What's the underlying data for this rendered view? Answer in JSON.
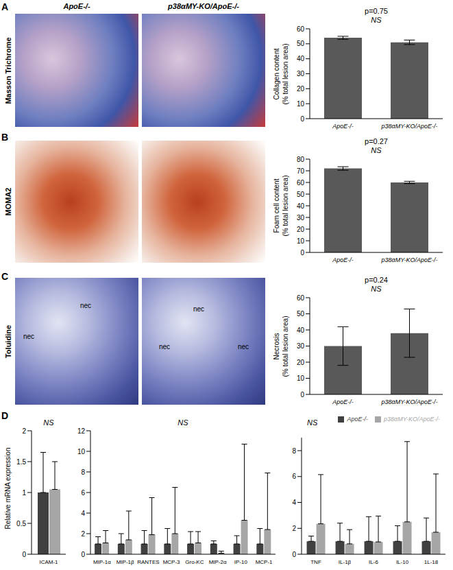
{
  "panels": [
    "A",
    "B",
    "C",
    "D"
  ],
  "image_columns": [
    "ApoE-/-",
    "p38αMY-KO/ApoE-/-"
  ],
  "image_rows": [
    {
      "label": "Masson Trichrome"
    },
    {
      "label": "MOMA2"
    },
    {
      "label": "Toluidine",
      "annotations": [
        [
          "nec",
          "nec"
        ],
        [
          "nec",
          "nec",
          "nec"
        ]
      ]
    }
  ],
  "chart_data": [
    {
      "type": "bar",
      "categories": [
        "ApoE-/-",
        "p38αMY-KO/ApoE-/-"
      ],
      "values": [
        54,
        51
      ],
      "errors": [
        1,
        1.5
      ],
      "color": "#595959",
      "ylabel": [
        "Collagen content",
        "(% total lesion area)"
      ],
      "ylim": [
        0,
        60
      ],
      "yticks": [
        0,
        10,
        20,
        30,
        40,
        50,
        60
      ],
      "annotations": [
        "p=0.75",
        "NS"
      ]
    },
    {
      "type": "bar",
      "categories": [
        "ApoE-/-",
        "p38αMY-KO/ApoE-/-"
      ],
      "values": [
        72,
        60
      ],
      "errors": [
        1.5,
        1
      ],
      "color": "#595959",
      "ylabel": [
        "Foam cell content",
        "(% total lesion area)"
      ],
      "ylim": [
        0,
        80
      ],
      "yticks": [
        0,
        10,
        20,
        30,
        40,
        50,
        60,
        70,
        80
      ],
      "annotations": [
        "p=0.27",
        "NS"
      ]
    },
    {
      "type": "bar",
      "categories": [
        "ApoE-/-",
        "p38αMY-KO/ApoE-/-"
      ],
      "values": [
        30,
        38
      ],
      "errors": [
        12,
        15
      ],
      "color": "#595959",
      "ylabel": [
        "Necrosis",
        "(% total lesion area)"
      ],
      "ylim": [
        0,
        60
      ],
      "yticks": [
        0,
        10,
        20,
        30,
        40,
        50,
        60
      ],
      "annotations": [
        "p=0.24",
        "NS"
      ]
    },
    {
      "type": "bar",
      "categories": [
        "ICAM-1"
      ],
      "series": [
        {
          "name": "ApoE-/-",
          "color": "#404040",
          "values": [
            1
          ],
          "errors": [
            0.65
          ]
        },
        {
          "name": "p38αMY-KO/ApoE-/-",
          "color": "#a6a6a6",
          "values": [
            1.05
          ],
          "errors": [
            0.45
          ]
        }
      ],
      "ylabel": "Relative mRNA expression",
      "ylim": [
        0,
        2
      ],
      "yticks": [
        0,
        0.5,
        1,
        1.5,
        2
      ],
      "annotations": [
        "NS"
      ]
    },
    {
      "type": "bar",
      "categories": [
        "MIP-1α",
        "MIP-1β",
        "RANTES",
        "MCP-3",
        "Gro-KC",
        "MIP-2α",
        "IP-10",
        "MCP-1"
      ],
      "series": [
        {
          "name": "ApoE-/-",
          "color": "#404040",
          "values": [
            1,
            1,
            1,
            1,
            1,
            1,
            1,
            1
          ],
          "errors": [
            0.7,
            1,
            1.3,
            1.5,
            1.2,
            0.3,
            0.8,
            1.5
          ]
        },
        {
          "name": "p38αMY-KO/ApoE-/-",
          "color": "#a6a6a6",
          "values": [
            1.1,
            1.4,
            1.9,
            2,
            1.1,
            0.1,
            3.3,
            2.4
          ],
          "errors": [
            1.2,
            2.8,
            3.6,
            4.5,
            1.1,
            0.2,
            7.4,
            5.5
          ]
        }
      ],
      "ylim": [
        0,
        12
      ],
      "yticks": [
        0,
        2,
        4,
        6,
        8,
        10,
        12
      ],
      "annotations": [
        "NS"
      ]
    },
    {
      "type": "bar",
      "categories": [
        "TNF",
        "IL-1β",
        "IL-6",
        "IL-10",
        "1L-18"
      ],
      "series": [
        {
          "name": "ApoE-/-",
          "color": "#404040",
          "values": [
            1,
            1,
            1,
            1,
            1
          ],
          "errors": [
            0.4,
            1.4,
            1.9,
            1.2,
            1.8
          ]
        },
        {
          "name": "p38αMY-KO/ApoE-/-",
          "color": "#a6a6a6",
          "values": [
            2.35,
            0.8,
            0.95,
            2.5,
            1.7
          ],
          "errors": [
            3.8,
            1.1,
            2,
            6.2,
            4.5
          ]
        }
      ],
      "ylim": [
        0,
        9
      ],
      "yticks": [
        0,
        2,
        4,
        6,
        8
      ],
      "legend": "top-right",
      "annotations": [
        "NS"
      ]
    }
  ]
}
